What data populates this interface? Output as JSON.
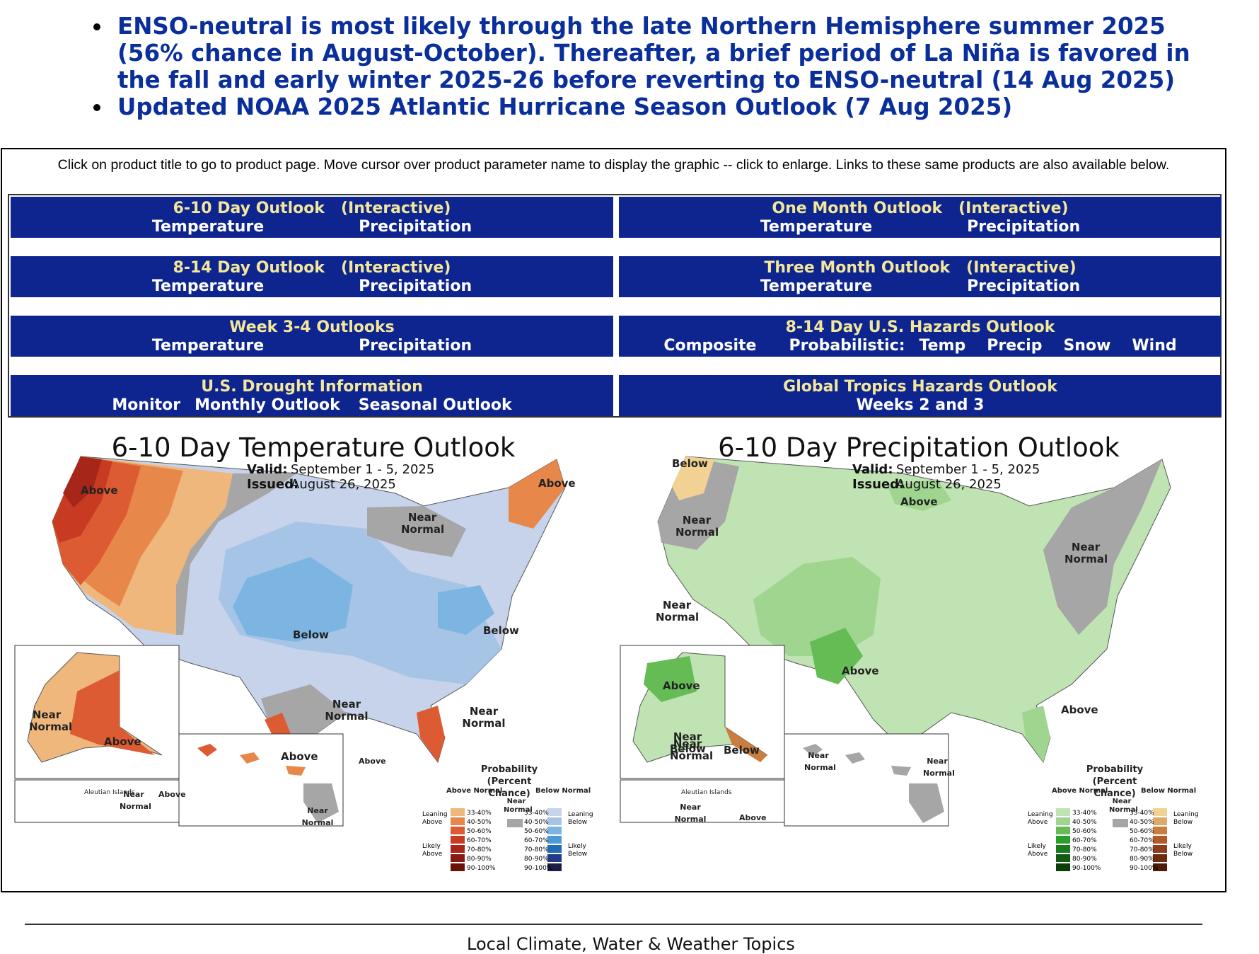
{
  "bullets": [
    "ENSO-neutral is most likely through the late Northern Hemisphere summer 2025 (56% chance in August-October). Thereafter, a brief period of La Niña is favored in the fall and early winter 2025-26 before reverting to ENSO-neutral (14 Aug 2025)",
    "Updated NOAA 2025 Atlantic Hurricane Season Outlook (7 Aug 2025)"
  ],
  "instructions": "Click on product title to go to product page. Move cursor over product parameter name to display the graphic -- click to enlarge. Links to these same products are also available below.",
  "products": {
    "r1c1": {
      "title": "6-10 Day Outlook",
      "interactive": "(Interactive)",
      "links": [
        "Temperature",
        "Precipitation"
      ]
    },
    "r1c2": {
      "title": "One Month Outlook",
      "interactive": "(Interactive)",
      "links": [
        "Temperature",
        "Precipitation"
      ]
    },
    "r2c1": {
      "title": "8-14 Day Outlook",
      "interactive": "(Interactive)",
      "links": [
        "Temperature",
        "Precipitation"
      ]
    },
    "r2c2": {
      "title": "Three Month Outlook",
      "interactive": "(Interactive)",
      "links": [
        "Temperature",
        "Precipitation"
      ]
    },
    "r3c1": {
      "title": "Week 3-4 Outlooks",
      "links": [
        "Temperature",
        "Precipitation"
      ]
    },
    "r3c2": {
      "title": "8-14 Day U.S. Hazards Outlook",
      "links": [
        "Composite",
        "Probabilistic:",
        "Temp",
        "Precip",
        "Snow",
        "Wind"
      ]
    },
    "r4c1": {
      "title": "U.S. Drought Information",
      "links": [
        "Monitor",
        "Monthly Outlook",
        "Seasonal Outlook"
      ]
    },
    "r4c2": {
      "title": "Global Tropics Hazards Outlook",
      "links": [
        "Weeks 2 and 3"
      ]
    }
  },
  "temp_map": {
    "title": "6-10 Day Temperature Outlook",
    "valid_label": "Valid:",
    "valid": "September 1 - 5, 2025",
    "issued_label": "Issued:",
    "issued": "August 26, 2025",
    "regions": [
      "Above",
      "Above",
      "Near Normal",
      "Below",
      "Below",
      "Near Normal",
      "Near Normal",
      "Above",
      "Near Normal",
      "Above",
      "Above",
      "Near Normal",
      "Near Normal",
      "Above"
    ],
    "legend_title": "Probability (Percent Chance)",
    "legend_above": "Above Normal",
    "legend_below": "Below Normal",
    "legend_near": "Near Normal",
    "aleutian": "Aleutian Islands",
    "colors": {
      "above": [
        "#f0b77c",
        "#e8874a",
        "#dd5b33",
        "#c83b22",
        "#a7261a",
        "#861a10",
        "#6a1208"
      ],
      "below": [
        "#c6d3ea",
        "#a6c4e6",
        "#7cb5e2",
        "#4a9bd6",
        "#1f6eb6",
        "#1f3b8a",
        "#201c4a"
      ],
      "near": "#a6a6a6"
    }
  },
  "precip_map": {
    "title": "6-10 Day Precipitation Outlook",
    "valid_label": "Valid:",
    "valid": "September 1 - 5, 2025",
    "issued_label": "Issued:",
    "issued": "August 26, 2025",
    "regions": [
      "Below",
      "Near Normal",
      "Above",
      "Near Normal",
      "Near Normal",
      "Above",
      "Above",
      "Above",
      "Near Below",
      "Near Normal",
      "Below",
      "Near Normal",
      "Near Normal",
      "Near Normal",
      "Above"
    ],
    "legend_title": "Probability (Percent Chance)",
    "legend_above": "Above Normal",
    "legend_below": "Below Normal",
    "legend_near": "Near Normal",
    "aleutian": "Aleutian Islands",
    "colors": {
      "above": [
        "#bfe3b3",
        "#9fd58f",
        "#65bc55",
        "#2aa02a",
        "#1b7a1b",
        "#135a13",
        "#0b3e0b"
      ],
      "below": [
        "#f2d195",
        "#e0a867",
        "#c97d3e",
        "#b05a2a",
        "#8f3c1c",
        "#702a10",
        "#4f1a06"
      ],
      "near": "#a6a6a6"
    }
  },
  "legend_ranges": [
    "33-40%",
    "40-50%",
    "50-60%",
    "60-70%",
    "70-80%",
    "80-90%",
    "90-100%"
  ],
  "legend_sides": {
    "leaning_above": "Leaning Above",
    "likely_above": "Likely Above",
    "leaning_below": "Leaning Below",
    "likely_below": "Likely Below"
  },
  "footer": "Local Climate, Water & Weather Topics"
}
